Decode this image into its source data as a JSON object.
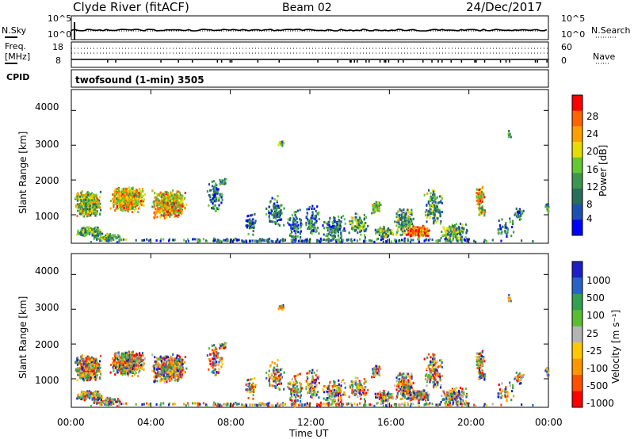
{
  "header": {
    "station": "Clyde River (fitACF)",
    "beam": "Beam 02",
    "date": "24/Dec/2017"
  },
  "top_panels": {
    "nsky_label": "N.Sky",
    "nsky_top": "10^5",
    "nsky_bottom": "10^0",
    "nsearch_label": "N.Search",
    "nsearch_top": "10^5",
    "nsearch_bottom": "10^0",
    "freq_label_1": "Freq.",
    "freq_label_2": "[MHz]",
    "freq_top": "18",
    "freq_bottom": "8",
    "nave_label": "Nave",
    "nave_top": "60",
    "nave_bottom": "0",
    "cpid_label": "CPID",
    "cpid_text": "twofsound (1-min) 3505"
  },
  "chart_data": [
    {
      "type": "heatmap",
      "name": "power",
      "ylabel": "Slant Range [km]",
      "yticks": [
        "4000",
        "3000",
        "2000",
        "1000"
      ],
      "colorbar_label": "Power [dB]",
      "colorbar_ticks": [
        "28",
        "24",
        "20",
        "16",
        "12",
        "8",
        "4"
      ],
      "colorbar_colors": [
        "#ff0000",
        "#ff6400",
        "#ffa000",
        "#e6dc00",
        "#64c832",
        "#3c9650",
        "#286e5a",
        "#1e50b4",
        "#0000ff"
      ],
      "range": [
        0,
        32
      ],
      "xlim": [
        "00:00",
        "00:00"
      ],
      "ylim": [
        180,
        4600
      ]
    },
    {
      "type": "heatmap",
      "name": "velocity",
      "ylabel": "Slant Range [km]",
      "yticks": [
        "4000",
        "3000",
        "2000",
        "1000"
      ],
      "colorbar_label": "Velocity [m s⁻¹]",
      "colorbar_ticks": [
        "1000",
        "500",
        "100",
        "25",
        "-25",
        "-100",
        "-500",
        "-1000"
      ],
      "colorbar_colors": [
        "#1e1ec8",
        "#2864c8",
        "#32a050",
        "#5abe32",
        "#b4b4b4",
        "#ffc800",
        "#ff9600",
        "#ff5000",
        "#ff0000"
      ],
      "range": [
        -1000,
        1000
      ],
      "xlim": [
        "00:00",
        "00:00"
      ],
      "ylim": [
        180,
        4600
      ]
    }
  ],
  "time_axis": {
    "ticks": [
      "00:00",
      "04:00",
      "08:00",
      "12:00",
      "16:00",
      "20:00",
      "00:00"
    ],
    "label": "Time UT"
  }
}
